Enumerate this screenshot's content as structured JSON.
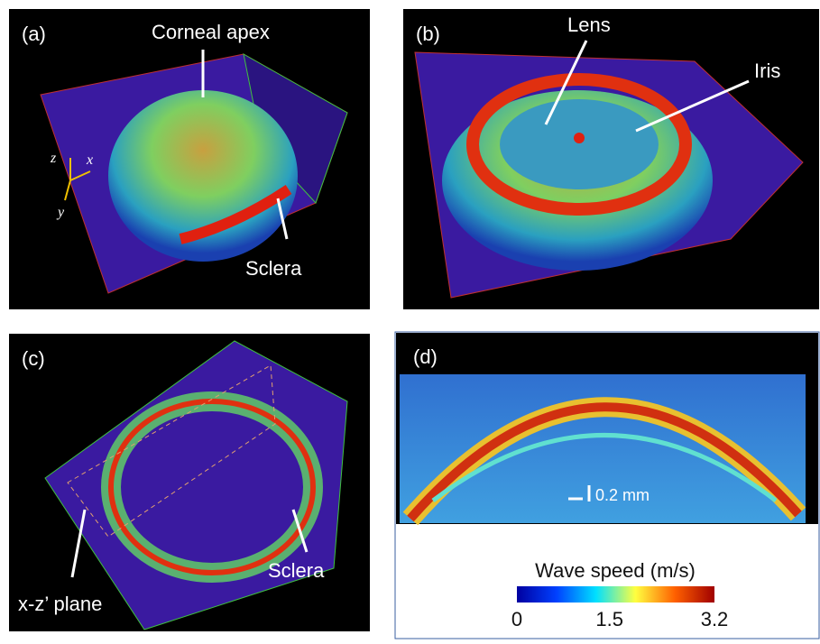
{
  "panels": [
    {
      "label": "(a)",
      "annotations": [
        "Corneal apex",
        "Sclera"
      ],
      "axes": [
        "z",
        "x",
        "y"
      ]
    },
    {
      "label": "(b)",
      "annotations": [
        "Lens",
        "Iris"
      ]
    },
    {
      "label": "(c)",
      "annotations": [
        "Sclera",
        "x-z’ plane"
      ]
    },
    {
      "label": "(d)",
      "scale_bar": "0.2 mm"
    }
  ],
  "colorbar": {
    "title": "Wave speed (m/s)",
    "lim": [
      0,
      3.2
    ],
    "ticks": [
      0,
      1.5,
      3.2
    ]
  }
}
